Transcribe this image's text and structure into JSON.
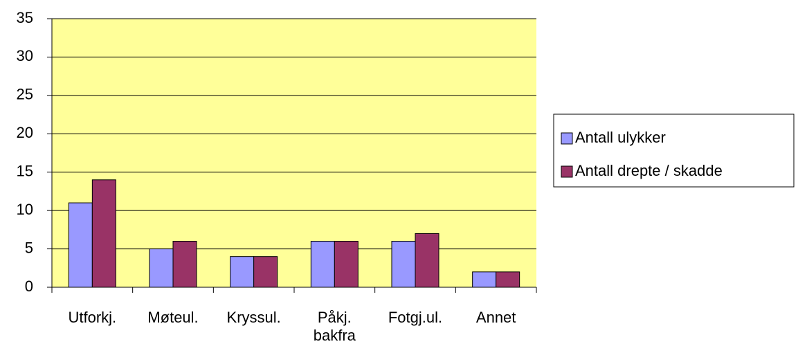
{
  "chart_data": {
    "type": "bar",
    "categories": [
      "Utforkj.",
      "Møteul.",
      "Kryssul.",
      "Påkj. bakfra",
      "Fotgj.ul.",
      "Annet"
    ],
    "series": [
      {
        "name": "Antall ulykker",
        "color": "#9999ff",
        "values": [
          11,
          5,
          4,
          6,
          6,
          2
        ]
      },
      {
        "name": "Antall drepte / skadde",
        "color": "#993366",
        "values": [
          14,
          6,
          4,
          6,
          7,
          2
        ]
      }
    ],
    "ylim": [
      0,
      35
    ],
    "yticks": [
      0,
      5,
      10,
      15,
      20,
      25,
      30,
      35
    ],
    "grid": true,
    "legend": "right",
    "plot_background": "#ffff99"
  }
}
